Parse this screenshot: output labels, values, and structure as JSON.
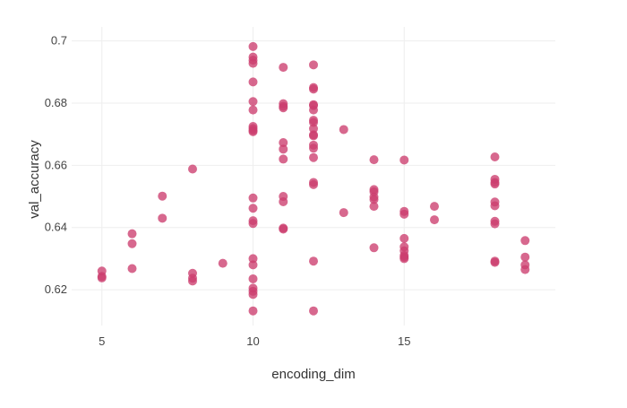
{
  "chart_data": {
    "type": "scatter",
    "title": "",
    "xlabel": "encoding_dim",
    "ylabel": "val_accuracy",
    "xlim": [
      4.0,
      20.0
    ],
    "ylim": [
      0.6085,
      0.7045
    ],
    "grid": true,
    "legend": "none",
    "point_color": "#cc3d6e",
    "x_ticks": [
      5,
      10,
      15
    ],
    "y_ticks": [
      0.62,
      0.64,
      0.66,
      0.68,
      0.7
    ],
    "x_tick_labels": [
      "5",
      "10",
      "15"
    ],
    "y_tick_labels": [
      "0.62",
      "0.64",
      "0.66",
      "0.68",
      "0.7"
    ],
    "series": [
      {
        "points": [
          [
            5,
            0.626
          ],
          [
            5,
            0.6243
          ],
          [
            5,
            0.6238
          ],
          [
            6,
            0.638
          ],
          [
            6,
            0.6348
          ],
          [
            6,
            0.6268
          ],
          [
            7,
            0.6501
          ],
          [
            7,
            0.643
          ],
          [
            8,
            0.6588
          ],
          [
            8,
            0.6253
          ],
          [
            8,
            0.6237
          ],
          [
            8,
            0.6228
          ],
          [
            9,
            0.6285
          ],
          [
            10,
            0.6982
          ],
          [
            10,
            0.6948
          ],
          [
            10,
            0.6938
          ],
          [
            10,
            0.6928
          ],
          [
            10,
            0.6868
          ],
          [
            10,
            0.6805
          ],
          [
            10,
            0.6778
          ],
          [
            10,
            0.6725
          ],
          [
            10,
            0.6718
          ],
          [
            10,
            0.6712
          ],
          [
            10,
            0.6708
          ],
          [
            10,
            0.6495
          ],
          [
            10,
            0.6462
          ],
          [
            10,
            0.6422
          ],
          [
            10,
            0.6413
          ],
          [
            10,
            0.63
          ],
          [
            10,
            0.628
          ],
          [
            10,
            0.6235
          ],
          [
            10,
            0.6205
          ],
          [
            10,
            0.6195
          ],
          [
            10,
            0.6185
          ],
          [
            10,
            0.6132
          ],
          [
            11,
            0.6915
          ],
          [
            11,
            0.6798
          ],
          [
            11,
            0.679
          ],
          [
            11,
            0.6785
          ],
          [
            11,
            0.6673
          ],
          [
            11,
            0.6652
          ],
          [
            11,
            0.662
          ],
          [
            11,
            0.65
          ],
          [
            11,
            0.6483
          ],
          [
            11,
            0.6398
          ],
          [
            11,
            0.6395
          ],
          [
            12,
            0.6923
          ],
          [
            12,
            0.685
          ],
          [
            12,
            0.6845
          ],
          [
            12,
            0.6795
          ],
          [
            12,
            0.6792
          ],
          [
            12,
            0.6778
          ],
          [
            12,
            0.6745
          ],
          [
            12,
            0.6738
          ],
          [
            12,
            0.6718
          ],
          [
            12,
            0.6698
          ],
          [
            12,
            0.6695
          ],
          [
            12,
            0.6665
          ],
          [
            12,
            0.6655
          ],
          [
            12,
            0.6625
          ],
          [
            12,
            0.6545
          ],
          [
            12,
            0.6538
          ],
          [
            12,
            0.6292
          ],
          [
            12,
            0.6132
          ],
          [
            13,
            0.6715
          ],
          [
            13,
            0.6448
          ],
          [
            14,
            0.6618
          ],
          [
            14,
            0.6522
          ],
          [
            14,
            0.6515
          ],
          [
            14,
            0.6498
          ],
          [
            14,
            0.649
          ],
          [
            14,
            0.6468
          ],
          [
            14,
            0.6335
          ],
          [
            15,
            0.6617
          ],
          [
            15,
            0.6452
          ],
          [
            15,
            0.6443
          ],
          [
            15,
            0.6365
          ],
          [
            15,
            0.6338
          ],
          [
            15,
            0.6325
          ],
          [
            15,
            0.631
          ],
          [
            15,
            0.6305
          ],
          [
            15,
            0.63
          ],
          [
            16,
            0.6468
          ],
          [
            16,
            0.6425
          ],
          [
            18,
            0.6627
          ],
          [
            18,
            0.6555
          ],
          [
            18,
            0.6545
          ],
          [
            18,
            0.654
          ],
          [
            18,
            0.6482
          ],
          [
            18,
            0.647
          ],
          [
            18,
            0.642
          ],
          [
            18,
            0.6412
          ],
          [
            18,
            0.6292
          ],
          [
            18,
            0.6288
          ],
          [
            19,
            0.6358
          ],
          [
            19,
            0.6305
          ],
          [
            19,
            0.628
          ],
          [
            19,
            0.6265
          ]
        ]
      }
    ]
  }
}
